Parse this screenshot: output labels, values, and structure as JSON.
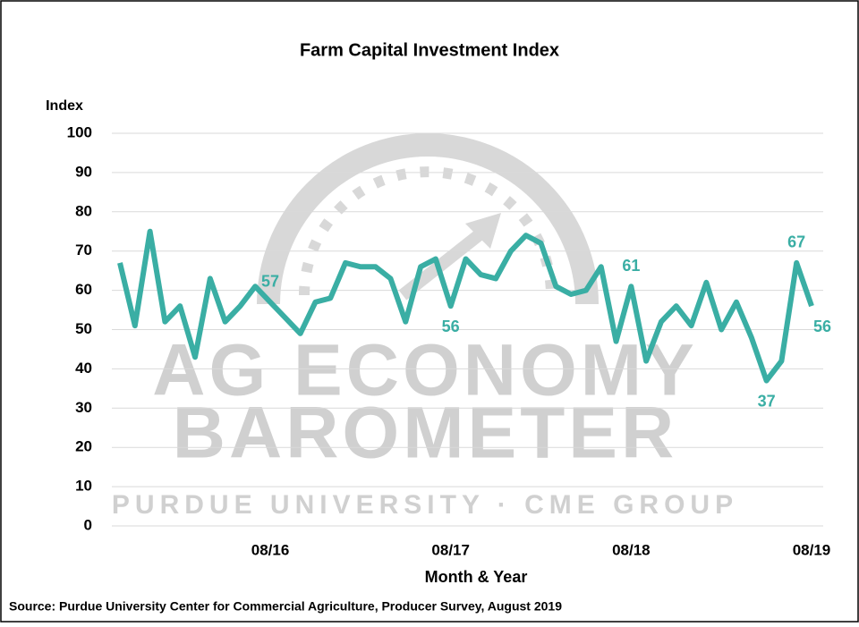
{
  "chart_data": {
    "type": "line",
    "title": "Farm Capital Investment Index",
    "y_label": "Index",
    "x_label": "Month & Year",
    "source": "Source: Purdue University Center for Commercial Agriculture, Producer Survey, August 2019",
    "watermark": [
      "AG ECONOMY",
      "BAROMETER",
      "PURDUE UNIVERSITY  ·  CME GROUP"
    ],
    "categories": [
      null,
      null,
      null,
      null,
      null,
      null,
      null,
      null,
      null,
      null,
      "08/16",
      null,
      null,
      null,
      null,
      null,
      null,
      null,
      null,
      null,
      null,
      null,
      "08/17",
      null,
      null,
      null,
      null,
      null,
      null,
      null,
      null,
      null,
      null,
      null,
      "08/18",
      null,
      null,
      null,
      null,
      null,
      null,
      null,
      null,
      null,
      null,
      null,
      "08/19"
    ],
    "series": [
      {
        "name": "Farm Capital Investment Index",
        "color": "#3aaea4",
        "values": [
          67,
          51,
          75,
          52,
          56,
          43,
          63,
          52,
          56,
          61,
          57,
          53,
          49,
          57,
          58,
          67,
          66,
          66,
          63,
          52,
          66,
          68,
          56,
          68,
          64,
          63,
          70,
          74,
          72,
          61,
          59,
          60,
          66,
          47,
          61,
          42,
          52,
          56,
          51,
          62,
          50,
          57,
          48,
          37,
          42,
          67,
          56
        ]
      }
    ],
    "data_labels": [
      10,
      22,
      34,
      43,
      45,
      46
    ],
    "ylim": [
      0,
      100
    ],
    "yticks": [
      0,
      10,
      20,
      30,
      40,
      50,
      60,
      70,
      80,
      90,
      100
    ],
    "grid": true
  }
}
